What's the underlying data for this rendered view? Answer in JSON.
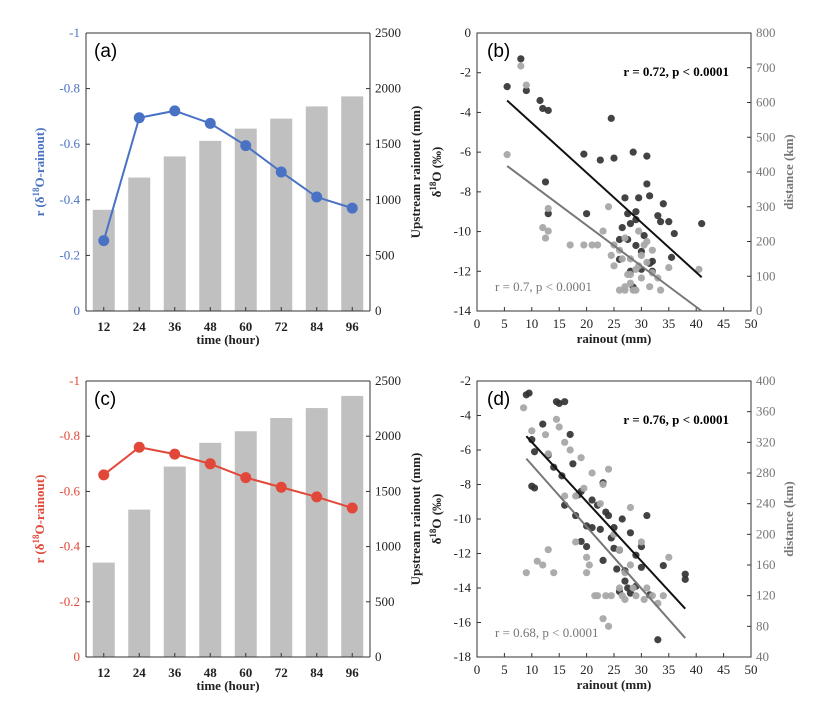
{
  "chart_data": [
    {
      "id": "a",
      "type": "bar+line",
      "panel_label": "(a)",
      "categories": [
        "12",
        "24",
        "36",
        "48",
        "60",
        "72",
        "84",
        "96"
      ],
      "bar_series": {
        "name": "Upstream rainout (mm)",
        "color": "#c0c0c0",
        "values": [
          910,
          1200,
          1390,
          1530,
          1640,
          1730,
          1840,
          1930
        ]
      },
      "line_series": {
        "name": "r (δ18O-rainout)",
        "color": "#4a72c4",
        "values": [
          -0.253,
          -0.695,
          -0.72,
          -0.675,
          -0.595,
          -0.5,
          -0.41,
          -0.37
        ]
      },
      "xlabel": "time (hour)",
      "ylabel_left_main": "r (δ",
      "ylabel_left_sup": "18",
      "ylabel_left_tail": "O-rainout)",
      "ylabel_right": "Upstream rainout (mm)",
      "yleft_ticks": [
        "-1",
        "-0.8",
        "-0.6",
        "-0.4",
        "-0.2",
        "0"
      ],
      "yleft_range": [
        0,
        -1
      ],
      "yright_ticks": [
        "0",
        "500",
        "1000",
        "1500",
        "2000",
        "2500"
      ],
      "yright_range": [
        0,
        2500
      ]
    },
    {
      "id": "b",
      "type": "scatter",
      "panel_label": "(b)",
      "xlabel": "rainout (mm)",
      "ylabel_left_main": "δ",
      "ylabel_left_sup": "18",
      "ylabel_left_tail": "O (‰)",
      "ylabel_right": "distance (km)",
      "xlim": [
        0,
        50
      ],
      "xticks": [
        "0",
        "5",
        "10",
        "15",
        "20",
        "25",
        "30",
        "35",
        "40",
        "45",
        "50"
      ],
      "ylim": [
        -14,
        0
      ],
      "yticks": [
        "0",
        "-2",
        "-4",
        "-6",
        "-8",
        "-10",
        "-12",
        "-14"
      ],
      "y2lim": [
        0,
        800
      ],
      "y2ticks": [
        "0",
        "100",
        "200",
        "300",
        "400",
        "500",
        "600",
        "700",
        "800"
      ],
      "stat_dark": "r = 0.72, p < 0.0001",
      "stat_grey": "r = 0.7, p < 0.0001",
      "fit_dark": {
        "x": [
          5.5,
          41
        ],
        "y": [
          -3.4,
          -12.3
        ],
        "color": "#111111"
      },
      "fit_grey": {
        "x": [
          5.5,
          41
        ],
        "y": [
          -6.7,
          -14.0
        ],
        "color": "#777777"
      },
      "series": [
        {
          "name": "δ18O",
          "axis": "left",
          "color": "#333333",
          "points": [
            [
              5.5,
              -2.7
            ],
            [
              8,
              -1.3
            ],
            [
              9,
              -2.9
            ],
            [
              11.5,
              -3.4
            ],
            [
              12,
              -3.8
            ],
            [
              13,
              -3.9
            ],
            [
              12.5,
              -7.5
            ],
            [
              13,
              -9.1
            ],
            [
              19.5,
              -6.1
            ],
            [
              20,
              -9.1
            ],
            [
              22.5,
              -6.4
            ],
            [
              24.5,
              -4.3
            ],
            [
              25,
              -6.3
            ],
            [
              26,
              -10.4
            ],
            [
              27,
              -8.3
            ],
            [
              27.5,
              -9.1
            ],
            [
              28,
              -9.6
            ],
            [
              28.5,
              -6.0
            ],
            [
              29,
              -9.4
            ],
            [
              29,
              -10.7
            ],
            [
              30,
              -11.0
            ],
            [
              30.5,
              -10.2
            ],
            [
              31,
              -6.2
            ],
            [
              31,
              -7.6
            ],
            [
              31.5,
              -8.2
            ],
            [
              31.5,
              -11.6
            ],
            [
              32,
              -12.0
            ],
            [
              33,
              -9.2
            ],
            [
              33.5,
              -9.5
            ],
            [
              34,
              -8.6
            ],
            [
              35,
              -9.5
            ],
            [
              35.5,
              -11.3
            ],
            [
              36,
              -10.1
            ],
            [
              41,
              -9.6
            ],
            [
              26,
              -11.4
            ],
            [
              28,
              -12.0
            ],
            [
              29,
              -9.0
            ],
            [
              27.5,
              -10.4
            ],
            [
              30,
              -11.9
            ],
            [
              29.5,
              -8.3
            ],
            [
              26.5,
              -9.8
            ],
            [
              32,
              -11.5
            ],
            [
              28.5,
              -12.8
            ]
          ]
        },
        {
          "name": "distance",
          "axis": "right",
          "color": "#a8a8a8",
          "points": [
            [
              5.5,
              450
            ],
            [
              8,
              705
            ],
            [
              9,
              650
            ],
            [
              12,
              240
            ],
            [
              12.5,
              210
            ],
            [
              13,
              295
            ],
            [
              13,
              230
            ],
            [
              17,
              190
            ],
            [
              19.5,
              190
            ],
            [
              21,
              190
            ],
            [
              22,
              190
            ],
            [
              23,
              230
            ],
            [
              24,
              300
            ],
            [
              25,
              190
            ],
            [
              25,
              130
            ],
            [
              26,
              175
            ],
            [
              26.5,
              150
            ],
            [
              27,
              60
            ],
            [
              27,
              70
            ],
            [
              27.5,
              105
            ],
            [
              28,
              150
            ],
            [
              28,
              80
            ],
            [
              28.5,
              60
            ],
            [
              29,
              120
            ],
            [
              29,
              60
            ],
            [
              29.5,
              230
            ],
            [
              30,
              95
            ],
            [
              30.5,
              190
            ],
            [
              31,
              140
            ],
            [
              31.5,
              70
            ],
            [
              32,
              110
            ],
            [
              32,
              175
            ],
            [
              33,
              95
            ],
            [
              33.5,
              60
            ],
            [
              35,
              125
            ],
            [
              40.5,
              120
            ],
            [
              26,
              60
            ],
            [
              28,
              105
            ],
            [
              30,
              160
            ],
            [
              27,
              210
            ],
            [
              24.5,
              160
            ],
            [
              31,
              200
            ],
            [
              29.5,
              130
            ]
          ]
        }
      ]
    },
    {
      "id": "c",
      "type": "bar+line",
      "panel_label": "(c)",
      "categories": [
        "12",
        "24",
        "36",
        "48",
        "60",
        "72",
        "84",
        "96"
      ],
      "bar_series": {
        "name": "Upstream rainout (mm)",
        "color": "#c0c0c0",
        "values": [
          855,
          1335,
          1725,
          1940,
          2045,
          2165,
          2255,
          2365
        ]
      },
      "line_series": {
        "name": "r (δ18O-rainout)",
        "color": "#e2483a",
        "values": [
          -0.66,
          -0.76,
          -0.735,
          -0.7,
          -0.65,
          -0.615,
          -0.58,
          -0.54
        ]
      },
      "xlabel": "time (hour)",
      "ylabel_left_main": "r (δ",
      "ylabel_left_sup": "18",
      "ylabel_left_tail": "O-rainout)",
      "ylabel_right": "Upstream rainout (mm)",
      "yleft_ticks": [
        "-1",
        "-0.8",
        "-0.6",
        "-0.4",
        "-0.2",
        "0"
      ],
      "yleft_range": [
        0,
        -1
      ],
      "yright_ticks": [
        "0",
        "500",
        "1000",
        "1500",
        "2000",
        "2500"
      ],
      "yright_range": [
        0,
        2500
      ]
    },
    {
      "id": "d",
      "type": "scatter",
      "panel_label": "(d)",
      "xlabel": "rainout (mm)",
      "ylabel_left_main": "δ",
      "ylabel_left_sup": "18",
      "ylabel_left_tail": "O (‰)",
      "ylabel_right": "distance (km)",
      "xlim": [
        0,
        50
      ],
      "xticks": [
        "0",
        "5",
        "10",
        "15",
        "20",
        "25",
        "30",
        "35",
        "40",
        "45",
        "50"
      ],
      "ylim": [
        -18,
        -2
      ],
      "yticks": [
        "-2",
        "-4",
        "-6",
        "-8",
        "-10",
        "-12",
        "-14",
        "-16",
        "-18"
      ],
      "y2lim": [
        40,
        400
      ],
      "y2ticks": [
        "40",
        "80",
        "120",
        "160",
        "200",
        "240",
        "280",
        "320",
        "360",
        "400"
      ],
      "stat_dark": "r = 0.76, p < 0.0001",
      "stat_grey": "r = 0.68, p < 0.0001",
      "fit_dark": {
        "x": [
          9,
          38
        ],
        "y": [
          -5.2,
          -15.2
        ],
        "color": "#111111"
      },
      "fit_grey": {
        "x": [
          9,
          38
        ],
        "y": [
          -6.5,
          -16.9
        ],
        "color": "#777777"
      },
      "series": [
        {
          "name": "δ18O",
          "axis": "left",
          "color": "#333333",
          "points": [
            [
              9,
              -2.8
            ],
            [
              9.5,
              -2.7
            ],
            [
              10,
              -5.4
            ],
            [
              10.5,
              -6.1
            ],
            [
              10,
              -8.1
            ],
            [
              10.5,
              -8.2
            ],
            [
              12,
              -4.5
            ],
            [
              13,
              -6.3
            ],
            [
              14.5,
              -3.2
            ],
            [
              15,
              -3.3
            ],
            [
              15.5,
              -7.5
            ],
            [
              16,
              -3.2
            ],
            [
              16,
              -9.2
            ],
            [
              17,
              -5.1
            ],
            [
              17.5,
              -6.8
            ],
            [
              18,
              -9.8
            ],
            [
              19,
              -8.4
            ],
            [
              19,
              -11.3
            ],
            [
              20,
              -10.4
            ],
            [
              20,
              -11.6
            ],
            [
              21,
              -8.9
            ],
            [
              22,
              -9.2
            ],
            [
              22.5,
              -10.6
            ],
            [
              23,
              -7.9
            ],
            [
              23,
              -12.4
            ],
            [
              24,
              -9.8
            ],
            [
              24.5,
              -11.1
            ],
            [
              25,
              -10.5
            ],
            [
              25.5,
              -12.9
            ],
            [
              26,
              -11.8
            ],
            [
              26.5,
              -10.0
            ],
            [
              27,
              -13.0
            ],
            [
              27,
              -13.6
            ],
            [
              28,
              -10.8
            ],
            [
              28,
              -14.3
            ],
            [
              29,
              -12.1
            ],
            [
              30,
              -11.6
            ],
            [
              31,
              -9.8
            ],
            [
              31.5,
              -14.4
            ],
            [
              33,
              -17.0
            ],
            [
              34,
              -12.7
            ],
            [
              38,
              -13.2
            ],
            [
              38,
              -13.5
            ],
            [
              21,
              -10.5
            ],
            [
              23.5,
              -9.6
            ],
            [
              25,
              -11.7
            ],
            [
              26,
              -14.2
            ],
            [
              27.5,
              -14.0
            ],
            [
              29,
              -13.9
            ],
            [
              30,
              -12.8
            ],
            [
              18.5,
              -8.6
            ],
            [
              14,
              -7.0
            ]
          ]
        },
        {
          "name": "distance",
          "axis": "right",
          "color": "#a8a8a8",
          "points": [
            [
              8.5,
              365
            ],
            [
              9,
              150
            ],
            [
              10,
              335
            ],
            [
              11,
              165
            ],
            [
              12,
              160
            ],
            [
              12.5,
              330
            ],
            [
              13,
              305
            ],
            [
              13,
              180
            ],
            [
              14,
              150
            ],
            [
              14.5,
              350
            ],
            [
              15,
              340
            ],
            [
              16,
              320
            ],
            [
              17,
              310
            ],
            [
              18,
              250
            ],
            [
              19,
              300
            ],
            [
              19.5,
              260
            ],
            [
              20,
              150
            ],
            [
              20.5,
              160
            ],
            [
              21,
              280
            ],
            [
              21.5,
              120
            ],
            [
              22,
              120
            ],
            [
              22.5,
              240
            ],
            [
              23,
              90
            ],
            [
              23,
              265
            ],
            [
              23.5,
              120
            ],
            [
              24,
              80
            ],
            [
              24.5,
              120
            ],
            [
              25,
              200
            ],
            [
              26,
              180
            ],
            [
              26.5,
              120
            ],
            [
              27,
              150
            ],
            [
              27,
              115
            ],
            [
              28,
              235
            ],
            [
              28.5,
              130
            ],
            [
              29,
              120
            ],
            [
              30,
              190
            ],
            [
              30.5,
              115
            ],
            [
              31,
              130
            ],
            [
              32,
              120
            ],
            [
              33,
              110
            ],
            [
              34,
              120
            ],
            [
              35,
              170
            ],
            [
              24,
              285
            ],
            [
              20,
              170
            ],
            [
              26,
              130
            ],
            [
              28,
              160
            ],
            [
              16,
              250
            ],
            [
              18,
              190
            ]
          ]
        }
      ]
    }
  ]
}
